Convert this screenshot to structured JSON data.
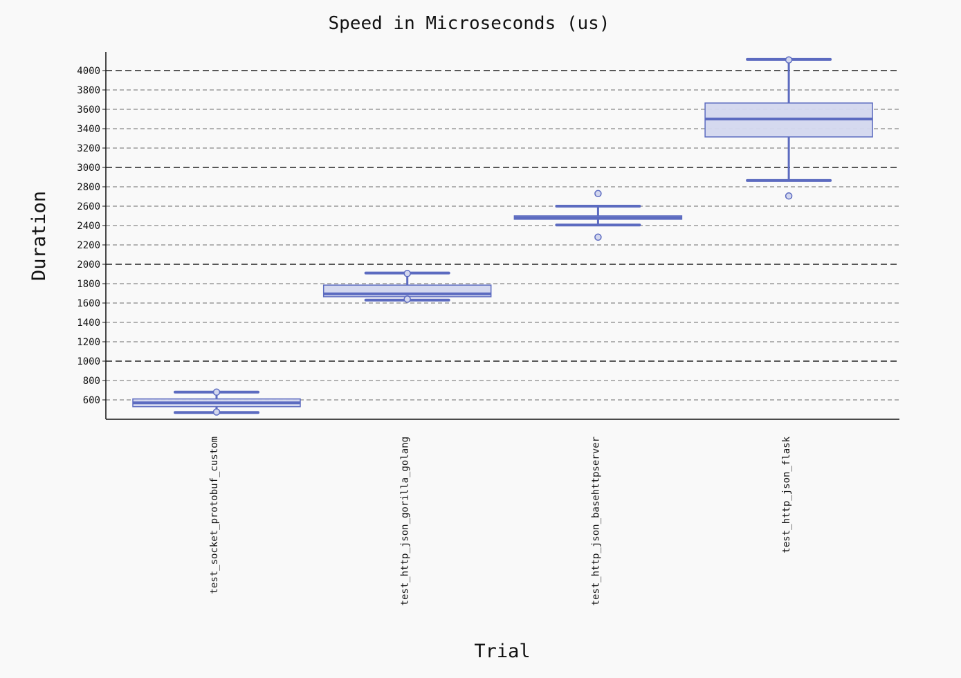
{
  "chart_data": {
    "type": "box",
    "title": "Speed in Microseconds (us)",
    "xlabel": "Trial",
    "ylabel": "Duration",
    "ylim": [
      400,
      4180
    ],
    "yticks": [
      600,
      800,
      1000,
      1200,
      1400,
      1600,
      1800,
      2000,
      2200,
      2400,
      2600,
      2800,
      3000,
      3200,
      3400,
      3600,
      3800,
      4000
    ],
    "grid": true,
    "legend": "none",
    "box_color": "#5c6bc0",
    "box_fill": "#d3d7ee",
    "categories": [
      "test_socket_protobuf_custom",
      "test_http_json_gorilla_golang",
      "test_http_json_basehttpserver",
      "test_http_json_flask"
    ],
    "boxes": [
      {
        "category": "test_socket_protobuf_custom",
        "whisker_low": 470,
        "q1": 530,
        "median": 570,
        "q3": 610,
        "whisker_high": 680,
        "outliers": [
          680,
          475
        ]
      },
      {
        "category": "test_http_json_gorilla_golang",
        "whisker_low": 1630,
        "q1": 1665,
        "median": 1695,
        "q3": 1785,
        "whisker_high": 1910,
        "outliers": [
          1905,
          1640
        ]
      },
      {
        "category": "test_http_json_basehttpserver",
        "whisker_low": 2405,
        "q1": 2465,
        "median": 2480,
        "q3": 2500,
        "whisker_high": 2600,
        "outliers": [
          2730,
          2280
        ]
      },
      {
        "category": "test_http_json_flask",
        "whisker_low": 2865,
        "q1": 3315,
        "median": 3500,
        "q3": 3665,
        "whisker_high": 4115,
        "outliers": [
          4110,
          2705
        ]
      }
    ]
  }
}
